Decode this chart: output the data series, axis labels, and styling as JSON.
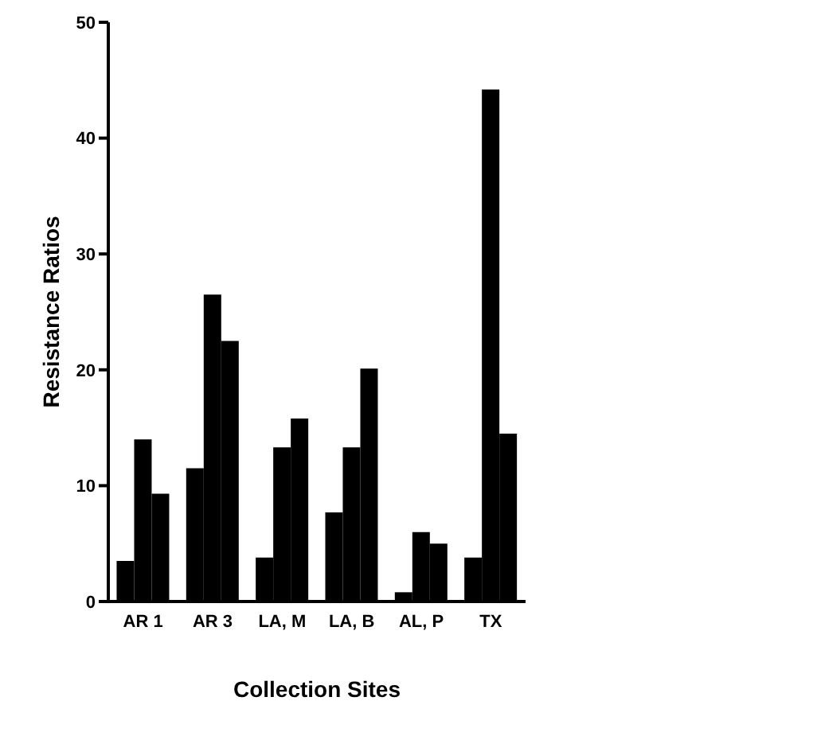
{
  "chart_data": {
    "type": "bar",
    "xlabel": "Collection Sites",
    "ylabel": "Resistance Ratios",
    "categories": [
      "AR 1",
      "AR 3",
      "LA, M",
      "LA, B",
      "AL, P",
      "TX"
    ],
    "series": [
      {
        "color": "#000000",
        "values": [
          3.5,
          11.5,
          3.8,
          7.7,
          0.8,
          3.8
        ]
      },
      {
        "color": "#000000",
        "values": [
          14,
          26.5,
          13.3,
          13.3,
          6,
          44.2
        ]
      },
      {
        "color": "#000000",
        "values": [
          9.3,
          22.5,
          15.8,
          20.1,
          5,
          14.5
        ]
      }
    ],
    "ylim": [
      0,
      50
    ],
    "yticks": [
      0,
      10,
      20,
      30,
      40,
      50
    ],
    "grid": false,
    "legend": false
  }
}
